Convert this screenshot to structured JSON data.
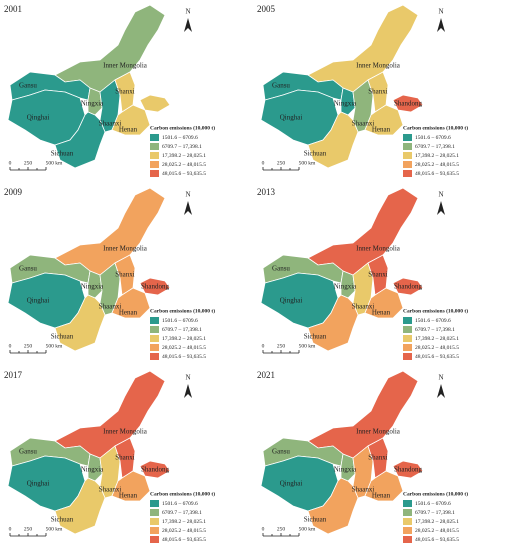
{
  "north": "N",
  "scale": [
    "0",
    "250",
    "500 km"
  ],
  "legend": {
    "title": "Carbon emissions (10,000 t)",
    "classes": [
      {
        "label": "1501.6 – 6709.6",
        "color": "#2b9a8d"
      },
      {
        "label": "6709.7 – 17,398.1",
        "color": "#8fb57c"
      },
      {
        "label": "17,398.2 – 28,025.1",
        "color": "#e9c96a"
      },
      {
        "label": "28,025.2 – 48,015.5",
        "color": "#f2a35e"
      },
      {
        "label": "48,015.6 – 93,635.5",
        "color": "#e5654b"
      }
    ]
  },
  "maps": [
    {
      "year": "2001",
      "provinces": [
        {
          "name": "Inner Mongolia",
          "color": "#8fb57c"
        },
        {
          "name": "Gansu",
          "color": "#2b9a8d"
        },
        {
          "name": "Qinghai",
          "color": "#2b9a8d"
        },
        {
          "name": "Ningxia",
          "color": "#8fb57c"
        },
        {
          "name": "Shaanxi",
          "color": "#2b9a8d"
        },
        {
          "name": "Shanxi",
          "color": "#e9c96a"
        },
        {
          "name": "Henan",
          "color": "#e9c96a"
        },
        {
          "color": "#e9c96a"
        },
        {
          "name": "Sichuan",
          "color": "#2b9a8d"
        }
      ]
    },
    {
      "year": "2005",
      "provinces": [
        {
          "name": "Inner Mongolia",
          "color": "#e9c96a"
        },
        {
          "name": "Gansu",
          "color": "#2b9a8d"
        },
        {
          "name": "Qinghai",
          "color": "#2b9a8d"
        },
        {
          "name": "Ningxia",
          "color": "#2b9a8d"
        },
        {
          "name": "Shaanxi",
          "color": "#8fb57c"
        },
        {
          "name": "Shanxi",
          "color": "#e9c96a"
        },
        {
          "name": "Henan",
          "color": "#e9c96a"
        },
        {
          "name": "Shandong",
          "color": "#e5654b"
        },
        {
          "name": "Sichuan",
          "color": "#e9c96a"
        }
      ]
    },
    {
      "year": "2009",
      "provinces": [
        {
          "name": "Inner Mongolia",
          "color": "#f2a35e"
        },
        {
          "name": "Gansu",
          "color": "#8fb57c"
        },
        {
          "name": "Qinghai",
          "color": "#2b9a8d"
        },
        {
          "name": "Ningxia",
          "color": "#8fb57c"
        },
        {
          "name": "Shaanxi",
          "color": "#8fb57c"
        },
        {
          "name": "Shanxi",
          "color": "#f2a35e"
        },
        {
          "name": "Henan",
          "color": "#f2a35e"
        },
        {
          "name": "Shandong",
          "color": "#e5654b"
        },
        {
          "name": "Sichuan",
          "color": "#e9c96a"
        }
      ]
    },
    {
      "year": "2013",
      "provinces": [
        {
          "name": "Inner Mongolia",
          "color": "#e5654b"
        },
        {
          "name": "Gansu",
          "color": "#8fb57c"
        },
        {
          "name": "Qinghai",
          "color": "#2b9a8d"
        },
        {
          "name": "Ningxia",
          "color": "#8fb57c"
        },
        {
          "name": "Shaanxi",
          "color": "#e9c96a"
        },
        {
          "name": "Shanxi",
          "color": "#e5654b"
        },
        {
          "name": "Henan",
          "color": "#f2a35e"
        },
        {
          "name": "Shandong",
          "color": "#e5654b"
        },
        {
          "name": "Sichuan",
          "color": "#f2a35e"
        }
      ]
    },
    {
      "year": "2017",
      "provinces": [
        {
          "name": "Inner Mongolia",
          "color": "#e5654b"
        },
        {
          "name": "Gansu",
          "color": "#8fb57c"
        },
        {
          "name": "Qinghai",
          "color": "#2b9a8d"
        },
        {
          "name": "Ningxia",
          "color": "#8fb57c"
        },
        {
          "name": "Shaanxi",
          "color": "#e9c96a"
        },
        {
          "name": "Shanxi",
          "color": "#e5654b"
        },
        {
          "name": "Henan",
          "color": "#f2a35e"
        },
        {
          "name": "Shandong",
          "color": "#e5654b"
        },
        {
          "name": "Sichuan",
          "color": "#e9c96a"
        }
      ]
    },
    {
      "year": "2021",
      "provinces": [
        {
          "name": "Inner Mongolia",
          "color": "#e5654b"
        },
        {
          "name": "Gansu",
          "color": "#8fb57c"
        },
        {
          "name": "Qinghai",
          "color": "#2b9a8d"
        },
        {
          "name": "Ningxia",
          "color": "#8fb57c"
        },
        {
          "name": "Shaanxi",
          "color": "#f2a35e"
        },
        {
          "name": "Shanxi",
          "color": "#e5654b"
        },
        {
          "name": "Henan",
          "color": "#f2a35e"
        },
        {
          "name": "Shandong",
          "color": "#e5654b"
        },
        {
          "name": "Sichuan",
          "color": "#f2a35e"
        }
      ]
    }
  ]
}
